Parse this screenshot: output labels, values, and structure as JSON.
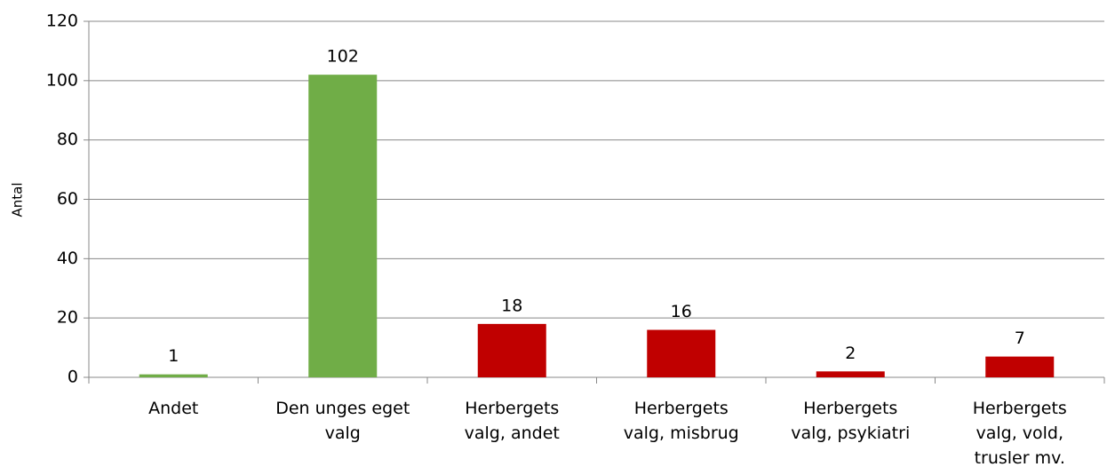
{
  "chart_data": {
    "type": "bar",
    "y_label": "Antal",
    "categories": [
      "Andet",
      "Den unges eget valg",
      "Herbergets valg, andet",
      "Herbergets valg, misbrug",
      "Herbergets valg, psykiatri",
      "Herbergets valg, vold, trusler mv."
    ],
    "values": [
      1,
      102,
      18,
      16,
      2,
      7
    ],
    "colors": [
      "#70ad47",
      "#70ad47",
      "#c00000",
      "#c00000",
      "#c00000",
      "#c00000"
    ],
    "ylim": [
      0,
      120
    ],
    "yticks": [
      0,
      20,
      40,
      60,
      80,
      100,
      120
    ],
    "grid": true
  }
}
